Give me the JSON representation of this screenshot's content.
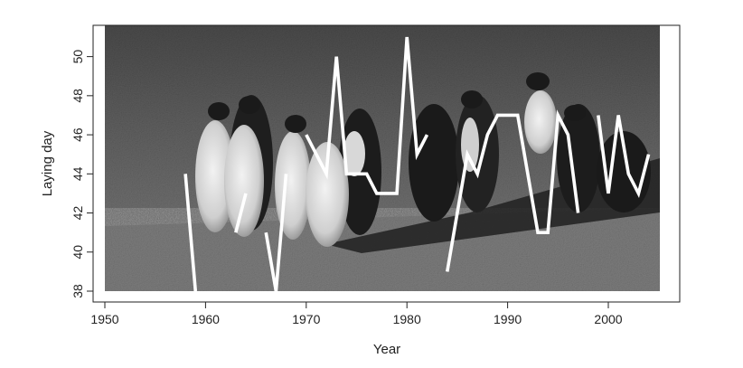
{
  "chart_data": {
    "type": "line",
    "xlabel": "Year",
    "ylabel": "Laying day",
    "xlim": [
      1950,
      2005
    ],
    "ylim": [
      38,
      51.5
    ],
    "xticks": [
      1950,
      1960,
      1970,
      1980,
      1990,
      2000
    ],
    "yticks": [
      38,
      40,
      42,
      44,
      46,
      48,
      50
    ],
    "grid": false,
    "line_color": "#ffffff",
    "background": "photo of emperor penguins (grayscale)",
    "series": [
      {
        "segments": [
          [
            [
              1958,
              44
            ],
            [
              1959,
              38
            ]
          ],
          [
            [
              1963,
              41
            ],
            [
              1964,
              43
            ]
          ],
          [
            [
              1966,
              41
            ],
            [
              1967,
              38
            ],
            [
              1968,
              44
            ]
          ],
          [
            [
              1970,
              46
            ],
            [
              1972,
              44
            ],
            [
              1973,
              50
            ],
            [
              1974,
              44
            ],
            [
              1976,
              44
            ],
            [
              1977,
              43
            ],
            [
              1979,
              43
            ],
            [
              1980,
              51
            ],
            [
              1981,
              45
            ],
            [
              1982,
              46
            ]
          ],
          [
            [
              1984,
              39
            ],
            [
              1986,
              45
            ],
            [
              1987,
              44
            ],
            [
              1988,
              46
            ],
            [
              1989,
              47
            ],
            [
              1991,
              47
            ],
            [
              1993,
              41
            ],
            [
              1994,
              41
            ],
            [
              1995,
              47
            ],
            [
              1996,
              46
            ],
            [
              1997,
              42
            ]
          ],
          [
            [
              1999,
              47
            ],
            [
              2000,
              43
            ],
            [
              2001,
              47
            ],
            [
              2002,
              44
            ],
            [
              2003,
              43
            ],
            [
              2004,
              45
            ]
          ]
        ]
      }
    ]
  }
}
